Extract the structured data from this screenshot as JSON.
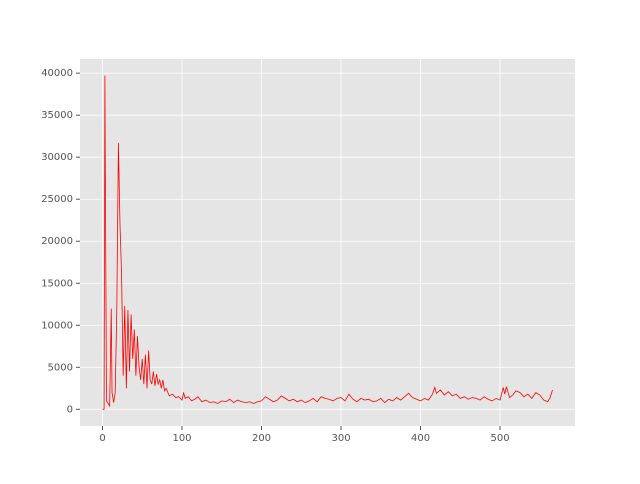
{
  "chart_data": {
    "type": "line",
    "x": [
      0,
      2,
      3,
      4,
      5,
      7,
      9,
      11,
      12,
      14,
      16,
      18,
      20,
      22,
      24,
      26,
      28,
      30,
      32,
      34,
      36,
      38,
      40,
      42,
      44,
      46,
      48,
      50,
      52,
      54,
      56,
      58,
      60,
      62,
      64,
      66,
      68,
      70,
      72,
      74,
      76,
      78,
      80,
      84,
      88,
      92,
      96,
      100,
      102,
      104,
      108,
      112,
      116,
      120,
      125,
      130,
      135,
      140,
      145,
      150,
      155,
      160,
      165,
      170,
      175,
      180,
      185,
      190,
      195,
      200,
      205,
      210,
      215,
      220,
      225,
      230,
      235,
      240,
      245,
      250,
      255,
      260,
      265,
      270,
      275,
      280,
      285,
      290,
      295,
      300,
      305,
      310,
      315,
      320,
      325,
      330,
      335,
      340,
      345,
      350,
      355,
      360,
      365,
      370,
      375,
      380,
      385,
      390,
      395,
      400,
      405,
      410,
      415,
      418,
      420,
      425,
      430,
      435,
      440,
      445,
      450,
      455,
      460,
      465,
      470,
      475,
      480,
      485,
      490,
      495,
      500,
      504,
      506,
      508,
      512,
      516,
      520,
      525,
      530,
      535,
      540,
      545,
      550,
      555,
      560,
      563,
      566
    ],
    "series": [
      {
        "color": "#ff0000",
        "values": [
          0,
          0,
          39700,
          20000,
          1000,
          700,
          400,
          12000,
          2000,
          800,
          2000,
          12000,
          31700,
          22000,
          16000,
          4000,
          12300,
          2500,
          11800,
          4500,
          11300,
          6000,
          9500,
          4000,
          8700,
          5000,
          3500,
          6000,
          3000,
          6500,
          2500,
          7000,
          3500,
          3000,
          4500,
          2800,
          4200,
          3000,
          3500,
          2500,
          3500,
          2200,
          2500,
          1600,
          1800,
          1400,
          1500,
          1100,
          2000,
          1300,
          1500,
          1000,
          1200,
          1500,
          900,
          1100,
          800,
          900,
          700,
          1000,
          900,
          1200,
          800,
          1100,
          900,
          800,
          900,
          700,
          900,
          1000,
          1500,
          1200,
          900,
          1100,
          1600,
          1300,
          1000,
          1200,
          900,
          1100,
          800,
          1000,
          1300,
          900,
          1500,
          1300,
          1200,
          1000,
          1300,
          1400,
          1000,
          1800,
          1200,
          900,
          1300,
          1100,
          1200,
          900,
          1000,
          1300,
          800,
          1200,
          1000,
          1400,
          1100,
          1500,
          1900,
          1400,
          1200,
          1000,
          1300,
          1100,
          1800,
          2600,
          1900,
          2300,
          1700,
          2100,
          1600,
          1800,
          1300,
          1500,
          1200,
          1400,
          1300,
          1100,
          1500,
          1200,
          1000,
          1300,
          1100,
          2600,
          1800,
          2700,
          1400,
          1700,
          2200,
          2000,
          1500,
          1800,
          1300,
          2000,
          1700,
          1100,
          900,
          1400,
          2300
        ]
      }
    ],
    "xlim": [
      -28.3,
      594.3
    ],
    "xticks": [
      0,
      100,
      200,
      300,
      400,
      500
    ],
    "ylim": [
      -1985,
      41685
    ],
    "yticks": [
      0,
      5000,
      10000,
      15000,
      20000,
      25000,
      30000,
      35000,
      40000
    ],
    "grid": true
  }
}
